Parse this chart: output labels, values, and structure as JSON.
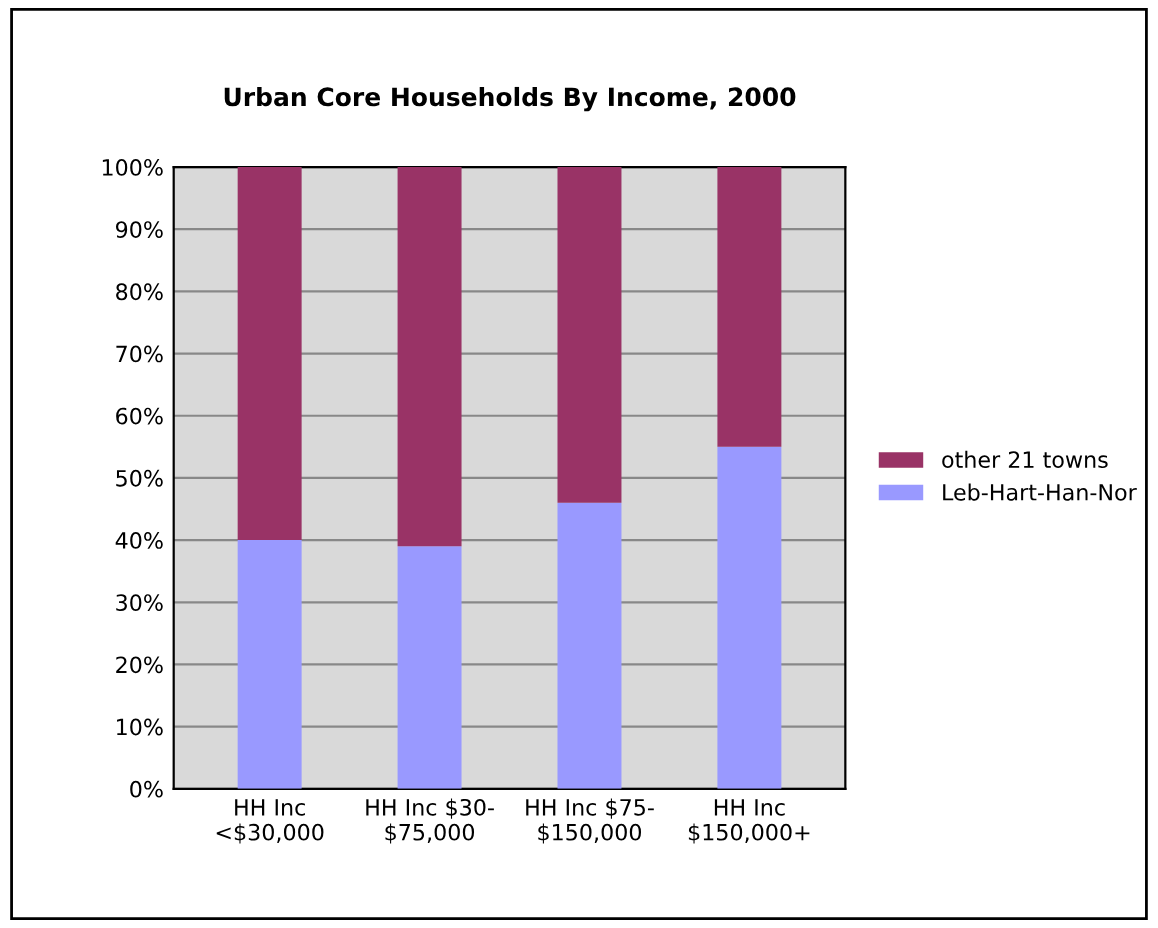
{
  "chart_data": {
    "type": "bar",
    "title": "Urban Core Households By Income, 2000",
    "categories": [
      "HH Inc\n<$30,000",
      "HH Inc $30-\n$75,000",
      "HH Inc $75-\n$150,000",
      "HH Inc\n$150,000+"
    ],
    "stacked": true,
    "series": [
      {
        "name": "Leb-Hart-Han-Nor",
        "color": "#9999ff",
        "values": [
          40,
          39,
          46,
          55
        ]
      },
      {
        "name": "other 21 towns",
        "color": "#993366",
        "values": [
          60,
          61,
          54,
          45
        ]
      }
    ],
    "ylim": [
      0,
      100
    ],
    "yticks": [
      {
        "value": 0,
        "label": "0%"
      },
      {
        "value": 10,
        "label": "10%"
      },
      {
        "value": 20,
        "label": "20%"
      },
      {
        "value": 30,
        "label": "30%"
      },
      {
        "value": 40,
        "label": "40%"
      },
      {
        "value": 50,
        "label": "50%"
      },
      {
        "value": 60,
        "label": "60%"
      },
      {
        "value": 70,
        "label": "70%"
      },
      {
        "value": 80,
        "label": "80%"
      },
      {
        "value": 90,
        "label": "90%"
      },
      {
        "value": 100,
        "label": "100%"
      }
    ],
    "grid": "y",
    "legend": "right"
  }
}
